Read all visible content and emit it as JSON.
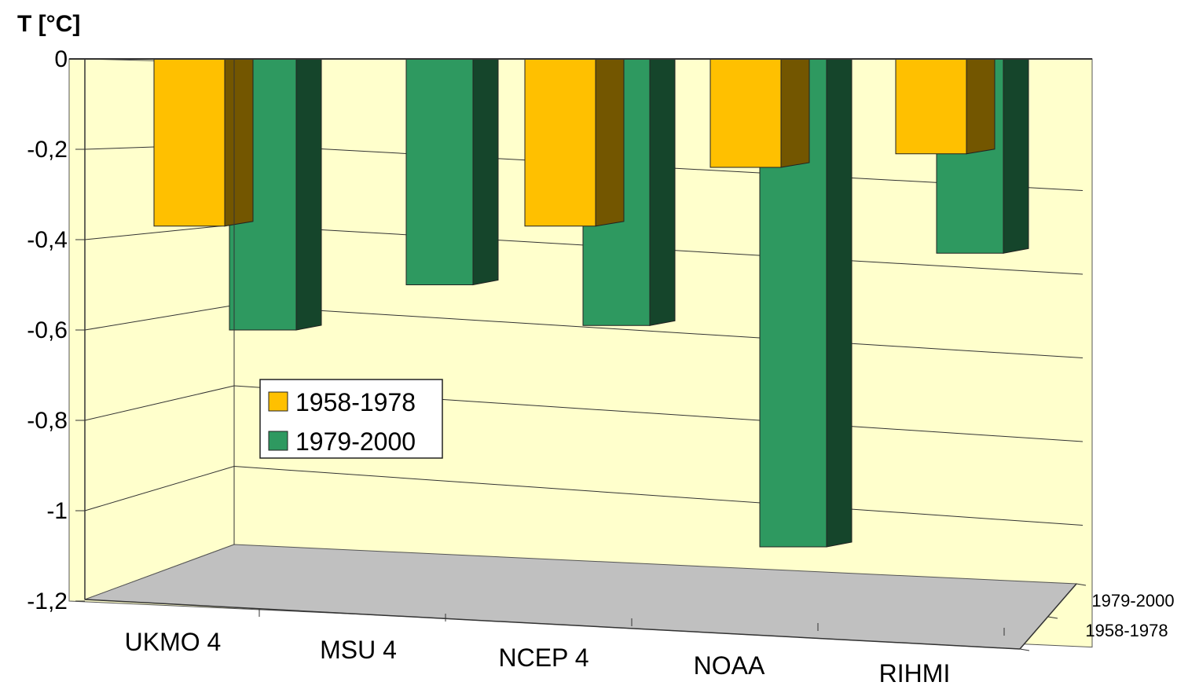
{
  "chart_data": {
    "type": "bar",
    "title": "",
    "ylabel": "T [°C]",
    "xlabel": "",
    "ylim": [
      -1.2,
      0
    ],
    "ytick_step": 0.2,
    "ytick_labels": [
      "0",
      "-0,2",
      "-0,4",
      "-0,6",
      "-0,8",
      "-1",
      "-1,2"
    ],
    "categories": [
      "UKMO 4",
      "MSU 4",
      "NCEP 4",
      "NOAA",
      "RIHMI"
    ],
    "depth_labels": [
      "1979-2000",
      "1958-1978"
    ],
    "series": [
      {
        "name": "1958-1978",
        "values": [
          -0.37,
          0.0,
          -0.37,
          -0.24,
          -0.21
        ]
      },
      {
        "name": "1979-2000",
        "values": [
          -0.6,
          -0.5,
          -0.59,
          -1.08,
          -0.43
        ]
      }
    ],
    "legend": {
      "position": "left-middle",
      "entries": [
        "1958-1978",
        "1979-2000"
      ]
    },
    "grid": true,
    "colors": {
      "series_1958_1978": "#FFC000",
      "series_1979_2000": "#2E9960",
      "walls": "#FFFFCC",
      "floor": "#C0C0C0"
    }
  }
}
